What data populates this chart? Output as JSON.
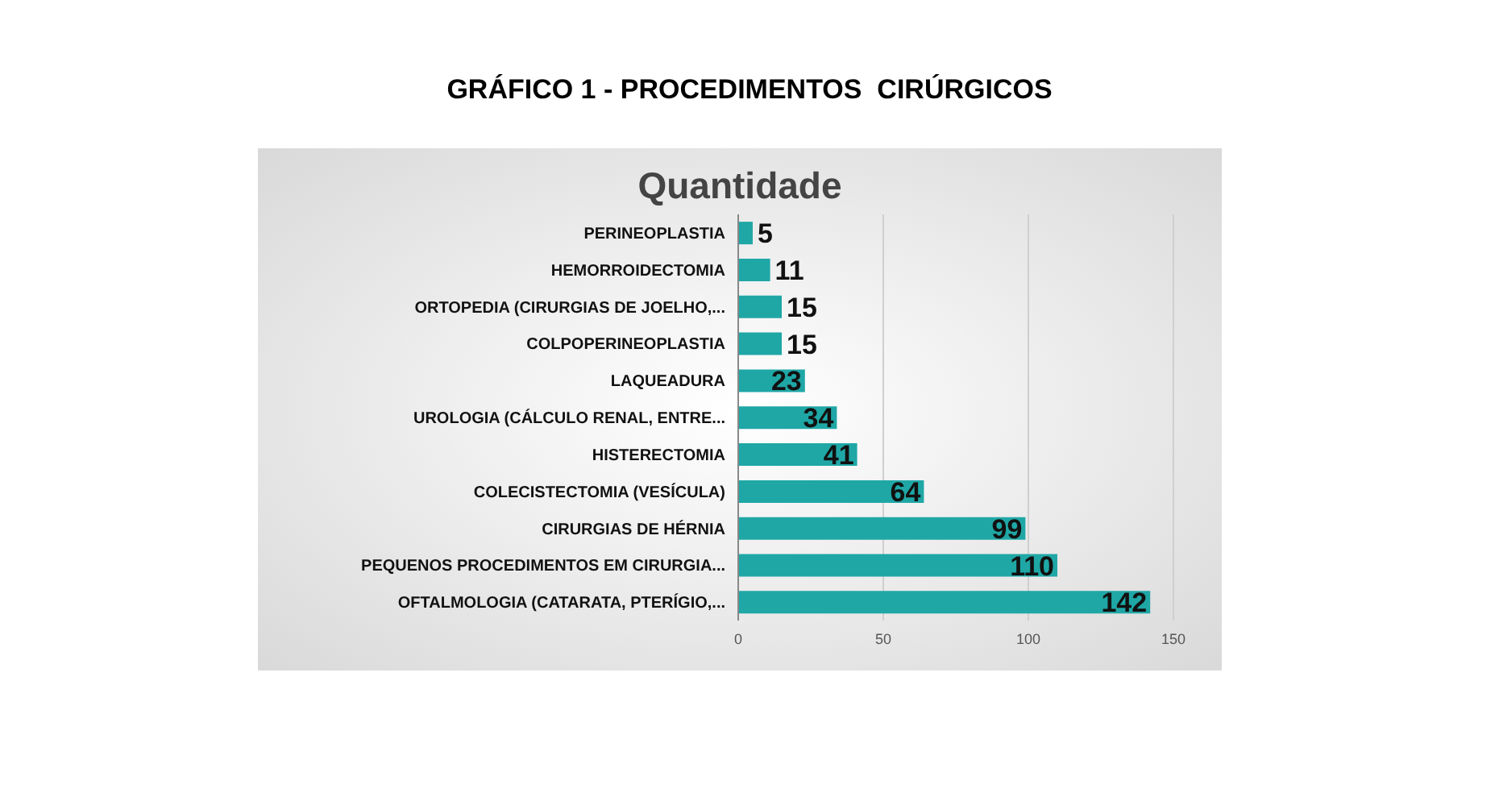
{
  "chart_data": {
    "type": "bar",
    "orientation": "horizontal",
    "title": "GRÁFICO 1 - PROCEDIMENTOS  CIRÚRGICOS",
    "subtitle": "Quantidade",
    "categories": [
      "PERINEOPLASTIA",
      "HEMORROIDECTOMIA",
      "ORTOPEDIA (CIRURGIAS DE JOELHO,...",
      "COLPOPERINEOPLASTIA",
      "LAQUEADURA",
      "UROLOGIA (CÁLCULO RENAL, ENTRE...",
      "HISTERECTOMIA",
      "COLECISTECTOMIA (VESÍCULA)",
      "CIRURGIAS DE HÉRNIA",
      "PEQUENOS PROCEDIMENTOS EM CIRURGIA...",
      "OFTALMOLOGIA (CATARATA, PTERÍGIO,..."
    ],
    "values": [
      5,
      11,
      15,
      15,
      23,
      34,
      41,
      64,
      99,
      110,
      142
    ],
    "color": "#1fa7a6",
    "xlim": [
      0,
      150
    ],
    "xticks": [
      0,
      50,
      100,
      150
    ],
    "grid": "x",
    "data_labels": true
  }
}
